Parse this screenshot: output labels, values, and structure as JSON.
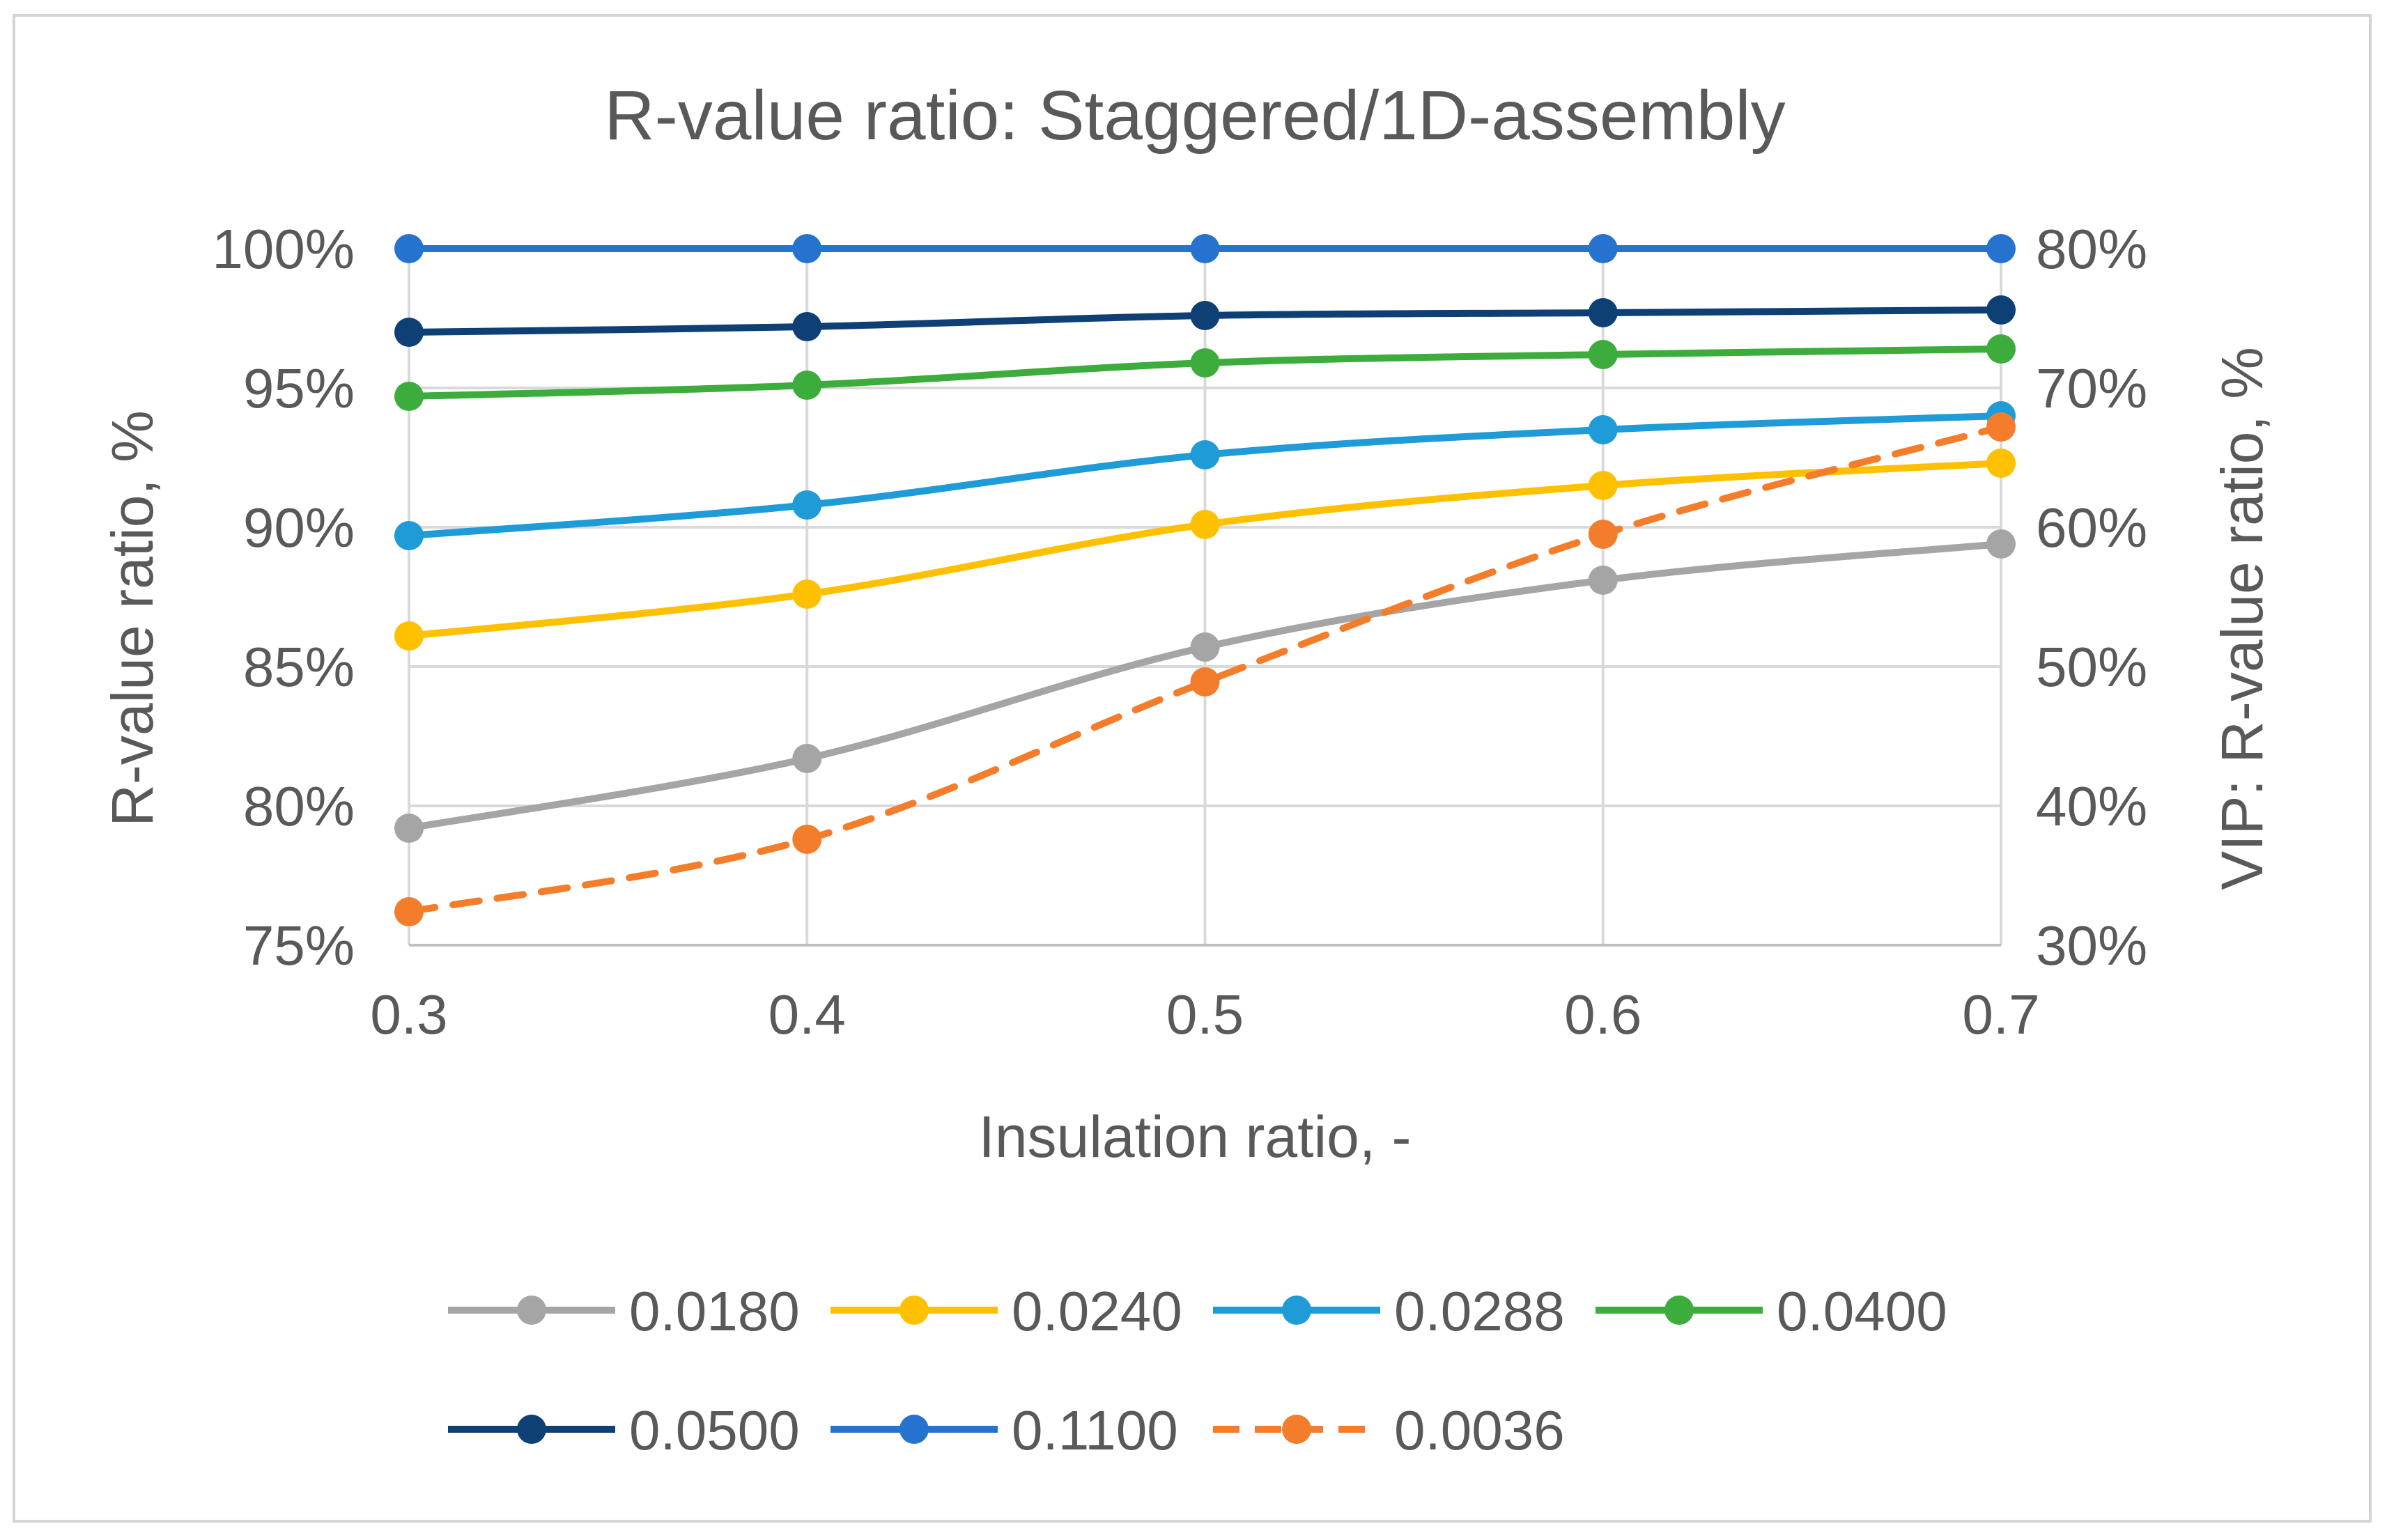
{
  "chart_data": {
    "type": "line",
    "title": "R-value ratio: Staggered/1D-assembly",
    "xlabel": "Insulation ratio, -",
    "ylabel": "R-value ratio, %",
    "y2label": "VIP: R-value ratio, %",
    "x": [
      0.3,
      0.4,
      0.5,
      0.6,
      0.7
    ],
    "x_tick_labels": [
      "0.3",
      "0.4",
      "0.5",
      "0.6",
      "0.7"
    ],
    "ylim": [
      75,
      100
    ],
    "y_ticks": [
      75,
      80,
      85,
      90,
      95,
      100
    ],
    "y_tick_labels": [
      "75%",
      "80%",
      "85%",
      "90%",
      "95%",
      "100%"
    ],
    "y2lim": [
      30,
      80
    ],
    "y2_ticks": [
      30,
      40,
      50,
      60,
      70,
      80
    ],
    "y2_tick_labels": [
      "30%",
      "40%",
      "50%",
      "60%",
      "70%",
      "80%"
    ],
    "grid": true,
    "legend_position": "bottom",
    "series": [
      {
        "name": "0.0180",
        "axis": "left",
        "color": "#a5a5a5",
        "dashed": false,
        "values": [
          79.2,
          81.7,
          85.7,
          88.1,
          89.4
        ]
      },
      {
        "name": "0.0240",
        "axis": "left",
        "color": "#ffc000",
        "dashed": false,
        "values": [
          86.1,
          87.6,
          90.1,
          91.5,
          92.3
        ]
      },
      {
        "name": "0.0288",
        "axis": "left",
        "color": "#1f9bd7",
        "dashed": false,
        "values": [
          89.7,
          90.8,
          92.6,
          93.5,
          94.0
        ]
      },
      {
        "name": "0.0400",
        "axis": "left",
        "color": "#3cad3c",
        "dashed": false,
        "values": [
          94.7,
          95.1,
          95.9,
          96.2,
          96.4
        ]
      },
      {
        "name": "0.0500",
        "axis": "left",
        "color": "#0e3f75",
        "dashed": false,
        "values": [
          97.0,
          97.2,
          97.6,
          97.7,
          97.8
        ]
      },
      {
        "name": "0.1100",
        "axis": "left",
        "color": "#2673cf",
        "dashed": false,
        "values": [
          100.0,
          100.0,
          100.0,
          100.0,
          100.0
        ]
      },
      {
        "name": "0.0036",
        "axis": "right",
        "color": "#f47d2c",
        "dashed": true,
        "values": [
          32.4,
          37.6,
          48.9,
          59.5,
          67.2
        ]
      }
    ]
  }
}
